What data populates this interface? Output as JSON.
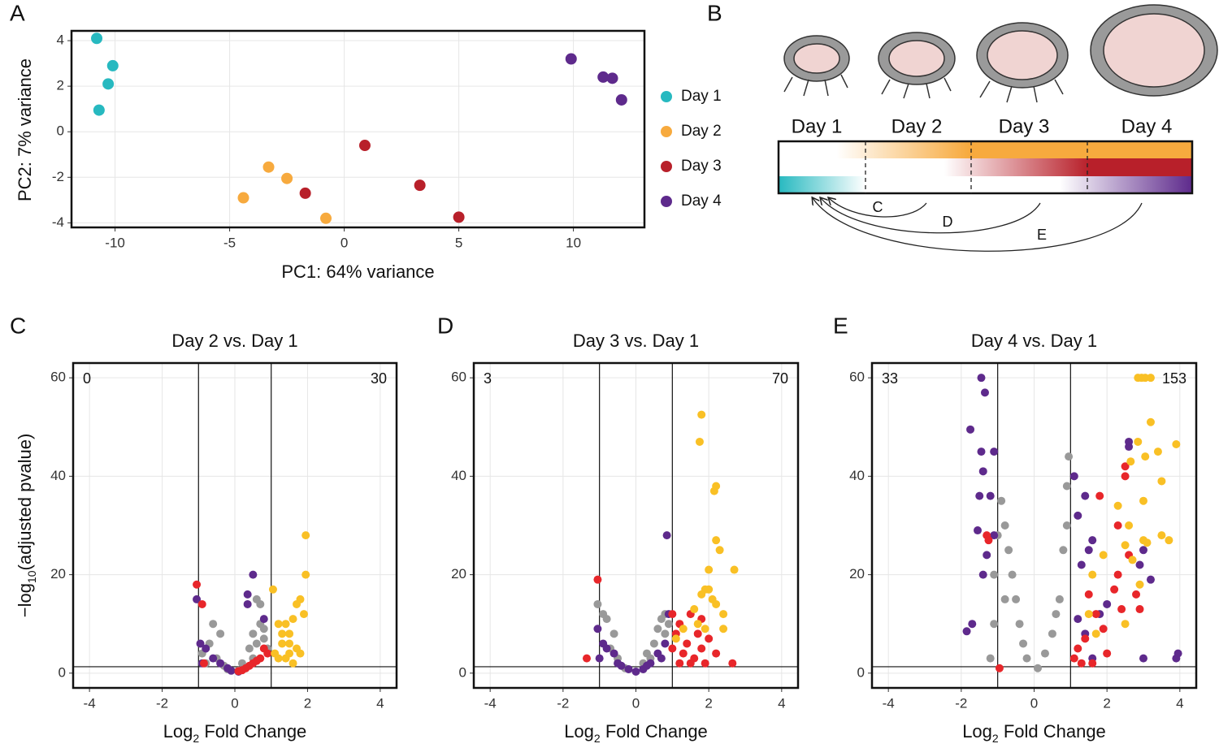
{
  "chart_data": [
    {
      "type": "scatter",
      "panel_label": "A",
      "xlabel": [
        "PC1: 64% variance"
      ],
      "ylabel": [
        "PC2: 7% variance"
      ],
      "xlim": [
        -11.9,
        13.1
      ],
      "ylim": [
        -4.2,
        4.43
      ],
      "xticks": [
        -10,
        -5,
        0,
        5,
        10
      ],
      "yticks": [
        -4,
        -2,
        0,
        2,
        4
      ],
      "grid": true,
      "legend": "right",
      "series": [
        {
          "name": "Day 1",
          "color": "#27b9c0",
          "x": [
            -10.8,
            -10.1,
            -10.3,
            -10.7
          ],
          "values": [
            4.1,
            2.9,
            2.1,
            0.95
          ]
        },
        {
          "name": "Day 2",
          "color": "#f7aa3e",
          "x": [
            -4.4,
            -3.3,
            -2.5,
            -0.8
          ],
          "values": [
            -2.9,
            -1.55,
            -2.05,
            -3.8
          ]
        },
        {
          "name": "Day 3",
          "color": "#b8202a",
          "x": [
            -1.7,
            0.9,
            3.3,
            5.0
          ],
          "values": [
            -2.7,
            -0.6,
            -2.35,
            -3.75
          ]
        },
        {
          "name": "Day 4",
          "color": "#5e2a8c",
          "x": [
            9.9,
            11.3,
            11.7,
            12.1
          ],
          "values": [
            3.2,
            2.4,
            2.35,
            1.4
          ]
        }
      ]
    },
    {
      "type": "scatter",
      "panel_label": "C",
      "title": "Day 2 vs. Day 1",
      "xlabel": [
        "Log",
        "2",
        " Fold Change"
      ],
      "ylabel": [
        "−log",
        "10",
        "(adjusted pvalue)"
      ],
      "xlim": [
        -4.45,
        4.45
      ],
      "ylim": [
        -3,
        63
      ],
      "xticks": [
        -4,
        -2,
        0,
        2,
        4
      ],
      "yticks": [
        0,
        20,
        40,
        60
      ],
      "grid": true,
      "vlines": [
        -1,
        1
      ],
      "hline": 1.3,
      "count_down": 0,
      "count_up": 30,
      "series": [
        {
          "color": "#999999",
          "x": [
            -0.9,
            -0.7,
            -0.5,
            -0.3,
            -0.2,
            0.1,
            0.3,
            0.5,
            0.6,
            0.7,
            0.8,
            0.5,
            0.4,
            -0.6,
            -0.4,
            0.6,
            0.7,
            0.9,
            -0.8,
            0.2,
            0.8
          ],
          "values": [
            4,
            6,
            3,
            1.5,
            0.8,
            0.5,
            1,
            3,
            6,
            10,
            9,
            8,
            5,
            10,
            8,
            15,
            14,
            5,
            2,
            2,
            7
          ]
        },
        {
          "color": "#5e2a8c",
          "x": [
            -1.05,
            -0.95,
            -0.8,
            -0.6,
            -0.4,
            -0.2,
            -0.1,
            0.35,
            0.35,
            0.5,
            0.1,
            0.8,
            -0.9
          ],
          "values": [
            15,
            6,
            5,
            3,
            2,
            1,
            0.5,
            16,
            14,
            20,
            0.3,
            11,
            2
          ]
        },
        {
          "color": "#e8262a",
          "x": [
            -1.05,
            -0.9,
            -0.85,
            0.1,
            0.3,
            0.5,
            0.7,
            0.9,
            0.6,
            0.4,
            0.8,
            0.2
          ],
          "values": [
            18,
            14,
            2,
            0.4,
            1,
            2,
            3,
            4,
            2.5,
            1.5,
            5,
            0.6
          ]
        },
        {
          "color": "#f9c025",
          "x": [
            1.95,
            1.95,
            1.8,
            1.7,
            1.6,
            1.5,
            1.4,
            1.3,
            1.2,
            1.1,
            1.05,
            1.2,
            1.5,
            1.7,
            1.8,
            1.5,
            1.3,
            1.6,
            1.4,
            1.9
          ],
          "values": [
            28,
            20,
            15,
            14,
            11,
            8,
            10,
            6,
            10,
            4,
            17,
            3,
            4,
            5,
            4,
            6,
            8,
            2,
            3,
            12
          ]
        }
      ]
    },
    {
      "type": "scatter",
      "panel_label": "D",
      "title": "Day 3 vs. Day 1",
      "xlabel": [
        "Log",
        "2",
        " Fold Change"
      ],
      "xlim": [
        -4.45,
        4.45
      ],
      "ylim": [
        -3,
        63
      ],
      "xticks": [
        -4,
        -2,
        0,
        2,
        4
      ],
      "yticks": [
        0,
        20,
        40,
        60
      ],
      "grid": true,
      "vlines": [
        -1,
        1
      ],
      "hline": 1.3,
      "count_down": 3,
      "count_up": 70,
      "series": [
        {
          "color": "#999999",
          "x": [
            -1.05,
            -0.9,
            -0.8,
            -0.7,
            -0.5,
            0.2,
            0.4,
            0.5,
            0.6,
            0.7,
            0.8,
            -0.3,
            0.3,
            0.8,
            0.9,
            -0.6
          ],
          "values": [
            14,
            12,
            11,
            5,
            3,
            2,
            3,
            6,
            9,
            11,
            12,
            1,
            4,
            8,
            10,
            8
          ]
        },
        {
          "color": "#5e2a8c",
          "x": [
            -1.05,
            -1.0,
            -0.9,
            -0.8,
            -0.6,
            -0.5,
            -0.4,
            -0.2,
            0,
            0.2,
            0.4,
            0.6,
            0.8,
            0.85,
            0.9,
            0.7,
            0.3
          ],
          "values": [
            9,
            3,
            6,
            5,
            4,
            2,
            1.5,
            0.8,
            0.3,
            0.8,
            2,
            4,
            6,
            28,
            12,
            3,
            1.5
          ]
        },
        {
          "color": "#e8262a",
          "x": [
            -1.05,
            -1.35,
            1.0,
            1.1,
            1.2,
            1.3,
            1.4,
            1.5,
            1.6,
            1.7,
            1.8,
            1.9,
            2.0,
            2.2,
            1.2,
            1.5,
            2.65,
            1.0,
            1.8
          ],
          "values": [
            19,
            3,
            5,
            8,
            10,
            4,
            6,
            12,
            3,
            8,
            5,
            2,
            7,
            4,
            2,
            2,
            2,
            12,
            11
          ]
        },
        {
          "color": "#f9c025",
          "x": [
            1.8,
            1.75,
            2.2,
            2.15,
            2.2,
            2.3,
            2.0,
            2.7,
            2.0,
            1.9,
            1.8,
            2.1,
            1.6,
            1.9,
            2.4,
            1.3,
            1.1,
            2.2,
            2.4,
            1.7
          ],
          "values": [
            52.5,
            47,
            38,
            37,
            27,
            25,
            21,
            21,
            17,
            17,
            16,
            15,
            13,
            9,
            9,
            9,
            7,
            14,
            12,
            10
          ]
        }
      ]
    },
    {
      "type": "scatter",
      "panel_label": "E",
      "title": "Day 4 vs. Day 1",
      "xlabel": [
        "Log",
        "2",
        " Fold Change"
      ],
      "xlim": [
        -4.45,
        4.45
      ],
      "ylim": [
        -3,
        63
      ],
      "xticks": [
        -4,
        -2,
        0,
        2,
        4
      ],
      "yticks": [
        0,
        20,
        40,
        60
      ],
      "grid": true,
      "vlines": [
        -1,
        1
      ],
      "hline": 1.3,
      "count_down": 33,
      "count_up": 153,
      "series": [
        {
          "color": "#999999",
          "x": [
            -1.1,
            -1.0,
            -0.9,
            -0.8,
            -0.7,
            -0.6,
            -0.5,
            -0.4,
            -0.3,
            -0.2,
            0.1,
            0.3,
            0.5,
            0.7,
            0.8,
            0.9,
            0.95,
            0.9,
            -1.1,
            -1.2,
            0.6,
            -0.8
          ],
          "values": [
            20,
            28,
            35,
            30,
            25,
            20,
            15,
            10,
            6,
            3,
            1,
            4,
            8,
            15,
            25,
            30,
            44,
            38,
            10,
            3,
            12,
            15
          ]
        },
        {
          "color": "#5e2a8c",
          "x": [
            -1.45,
            -1.35,
            -1.75,
            -1.45,
            -1.4,
            -1.5,
            -1.55,
            -1.3,
            -1.4,
            -1.7,
            -1.85,
            -1.1,
            -1.2,
            -1.1,
            1.1,
            1.2,
            1.4,
            1.5,
            1.3,
            1.6,
            2.6,
            3.0,
            3.2,
            2.9,
            3.0,
            3.95,
            3.9,
            1.2,
            1.4,
            2.0,
            1.6,
            1.8,
            2.6
          ],
          "values": [
            60,
            57,
            49.5,
            45,
            41,
            36,
            29,
            24,
            20,
            10,
            8.5,
            45,
            36,
            28,
            40,
            32,
            36,
            25,
            22,
            27,
            46,
            25,
            19,
            22,
            3,
            4,
            3,
            11,
            8,
            14,
            3,
            12,
            47
          ]
        },
        {
          "color": "#e8262a",
          "x": [
            -1.3,
            -1.25,
            -0.95,
            1.2,
            1.4,
            1.8,
            2.5,
            2.5,
            2.2,
            2.6,
            2.8,
            2.9,
            1.5,
            1.7,
            2.4,
            1.3,
            1.6,
            2.0,
            1.9,
            1.1,
            2.3,
            2.3
          ],
          "values": [
            28,
            27,
            1,
            5,
            7,
            36,
            40,
            42,
            17,
            24,
            16,
            13,
            16,
            12,
            13,
            2,
            2,
            4,
            9,
            3,
            30,
            20
          ]
        },
        {
          "color": "#f9c025",
          "x": [
            2.85,
            2.95,
            3.05,
            3.2,
            3.2,
            3.9,
            2.85,
            3.4,
            2.65,
            3.05,
            3.0,
            3.5,
            2.3,
            2.6,
            3.0,
            3.1,
            2.5,
            3.5,
            3.7,
            2.7,
            2.9,
            1.9,
            1.6,
            1.5,
            2.5,
            1.7
          ],
          "values": [
            60,
            60,
            60,
            60,
            51,
            46.5,
            47,
            45,
            43,
            44,
            35,
            39,
            34,
            30,
            27,
            26.5,
            26,
            28,
            27,
            23,
            18,
            24,
            20,
            12,
            10,
            8
          ]
        }
      ]
    }
  ],
  "diagram": {
    "panel_label": "B",
    "stages": [
      "Day 1",
      "Day 2",
      "Day 3",
      "Day 4"
    ],
    "comparisons": [
      "C",
      "D",
      "E"
    ]
  }
}
